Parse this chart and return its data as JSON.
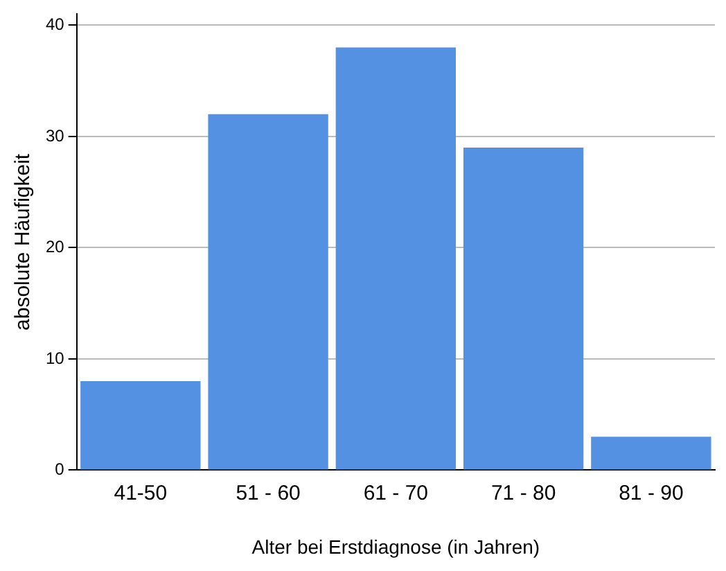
{
  "chart_data": {
    "type": "bar",
    "xlabel": "Alter bei Erstdiagnose (in Jahren)",
    "ylabel": "absolute Häufigkeit",
    "categories": [
      "41-50",
      "51 - 60",
      "61 - 70",
      "71 - 80",
      "81 - 90"
    ],
    "values": [
      8,
      32,
      38,
      29,
      3
    ],
    "color": "#5591e3",
    "ylim": [
      0,
      41
    ],
    "yticks": [
      0,
      10,
      20,
      30,
      40
    ],
    "grid": "y",
    "legend": false
  }
}
